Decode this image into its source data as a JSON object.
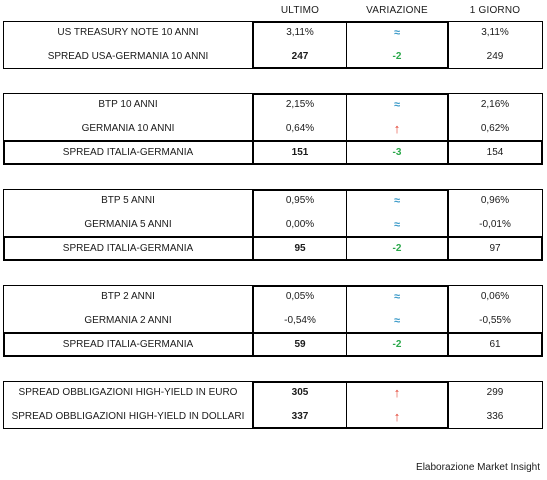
{
  "header": {
    "ultimo": "ULTIMO",
    "variazione": "VARIAZIONE",
    "giorno": "1 GIORNO"
  },
  "groups": [
    {
      "rows": [
        {
          "label": "US TREASURY NOTE 10 ANNI",
          "ultimo": "3,11%",
          "variazione": "≈",
          "giorno": "3,11%"
        },
        {
          "label": "SPREAD USA-GERMANIA 10 ANNI",
          "ultimo": "247",
          "variazione": "-2",
          "giorno": "249"
        }
      ]
    },
    {
      "rows": [
        {
          "label": "BTP 10 ANNI",
          "ultimo": "2,15%",
          "variazione": "≈",
          "giorno": "2,16%"
        },
        {
          "label": "GERMANIA 10 ANNI",
          "ultimo": "0,64%",
          "variazione": "↑",
          "giorno": "0,62%"
        },
        {
          "label": "SPREAD ITALIA-GERMANIA",
          "ultimo": "151",
          "variazione": "-3",
          "giorno": "154"
        }
      ]
    },
    {
      "rows": [
        {
          "label": "BTP 5 ANNI",
          "ultimo": "0,95%",
          "variazione": "≈",
          "giorno": "0,96%"
        },
        {
          "label": "GERMANIA 5 ANNI",
          "ultimo": "0,00%",
          "variazione": "≈",
          "giorno": "-0,01%"
        },
        {
          "label": "SPREAD ITALIA-GERMANIA",
          "ultimo": "95",
          "variazione": "-2",
          "giorno": "97"
        }
      ]
    },
    {
      "rows": [
        {
          "label": "BTP 2 ANNI",
          "ultimo": "0,05%",
          "variazione": "≈",
          "giorno": "0,06%"
        },
        {
          "label": "GERMANIA 2 ANNI",
          "ultimo": "-0,54%",
          "variazione": "≈",
          "giorno": "-0,55%"
        },
        {
          "label": "SPREAD ITALIA-GERMANIA",
          "ultimo": "59",
          "variazione": "-2",
          "giorno": "61"
        }
      ]
    },
    {
      "rows": [
        {
          "label": "SPREAD OBBLIGAZIONI HIGH-YIELD IN EURO",
          "ultimo": "305",
          "variazione": "↑",
          "giorno": "299"
        },
        {
          "label": "SPREAD OBBLIGAZIONI HIGH-YIELD IN DOLLARI",
          "ultimo": "337",
          "variazione": "↑",
          "giorno": "336"
        }
      ]
    }
  ],
  "footer": "Elaborazione Market Insight",
  "colors": {
    "up_arrow": "#e23a2a",
    "down_value": "#2aa84a",
    "approx": "#3d9bc9"
  }
}
